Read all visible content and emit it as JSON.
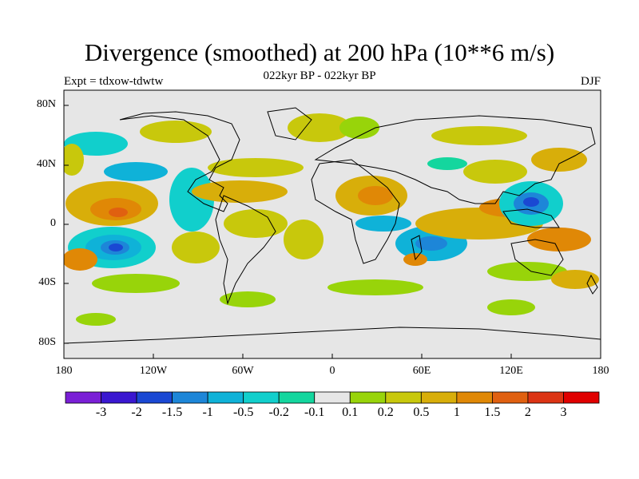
{
  "header": {
    "title": "Divergence (smoothed) at 200 hPa (10**6 m/s)",
    "subtitle": "022kyr BP - 022kyr BP",
    "experiment": "Expt = tdxow-tdwtw",
    "season": "DJF"
  },
  "axes": {
    "lat_ticks": [
      "80N",
      "40N",
      "0",
      "40S",
      "80S"
    ],
    "lon_ticks": [
      "180",
      "120W",
      "60W",
      "0",
      "60E",
      "120E",
      "180"
    ]
  },
  "colorbar": {
    "colors": [
      "#7a1fd6",
      "#3a17d0",
      "#1a48d3",
      "#1d86d8",
      "#0fb2d8",
      "#11cfcc",
      "#14d69e",
      "#e6e6e6",
      "#98d40a",
      "#c8c80c",
      "#d8ae0a",
      "#e08806",
      "#e06010",
      "#dc3414",
      "#e00000"
    ],
    "labels": [
      "-3",
      "-2",
      "-1.5",
      "-1",
      "-0.5",
      "-0.2",
      "-0.1",
      "0.1",
      "0.2",
      "0.5",
      "1",
      "1.5",
      "2",
      "3"
    ]
  }
}
